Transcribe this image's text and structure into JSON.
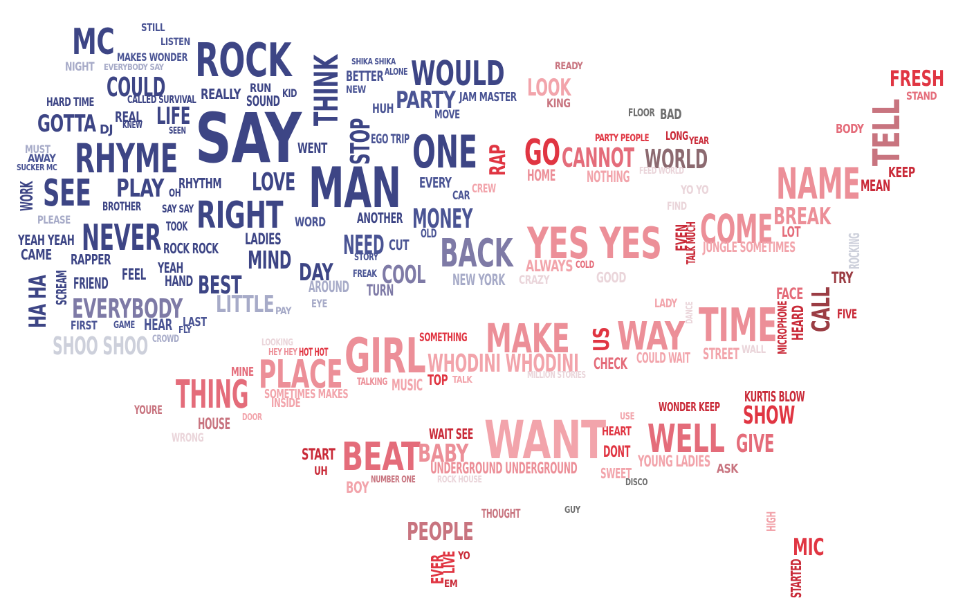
{
  "palette": {
    "navy": "#3d4585",
    "blue": "#4a5494",
    "slate": "#7e7aa6",
    "lavender": "#a7abc8",
    "silver": "#cdd0db",
    "pale": "#ead5da",
    "rose": "#f2a4ab",
    "pink": "#ec8f98",
    "coral": "#e46c7a",
    "mauve": "#c8747f",
    "red": "#e03542",
    "crimson": "#c92a38",
    "maroon": "#9b3d44",
    "taupe": "#8c6a70",
    "grey": "#6f6f6f"
  },
  "words": [
    {
      "id": "mc",
      "text": "MC",
      "color": "navy"
    },
    {
      "id": "still",
      "text": "STILL",
      "color": "blue"
    },
    {
      "id": "listen",
      "text": "LISTEN",
      "color": "blue"
    },
    {
      "id": "makes-wonder",
      "text": "MAKES WONDER",
      "color": "blue"
    },
    {
      "id": "night",
      "text": "NIGHT",
      "color": "lavender"
    },
    {
      "id": "everybody-say",
      "text": "EVERYBODY SAY",
      "color": "lavender"
    },
    {
      "id": "rock",
      "text": "ROCK",
      "color": "navy"
    },
    {
      "id": "think",
      "text": "THINK",
      "color": "navy"
    },
    {
      "id": "shika-shika",
      "text": "SHIKA SHIKA",
      "color": "blue"
    },
    {
      "id": "better",
      "text": "BETTER",
      "color": "blue"
    },
    {
      "id": "alone",
      "text": "ALONE",
      "color": "blue"
    },
    {
      "id": "new",
      "text": "NEW",
      "color": "blue"
    },
    {
      "id": "would",
      "text": "WOULD",
      "color": "navy"
    },
    {
      "id": "ready",
      "text": "READY",
      "color": "mauve"
    },
    {
      "id": "fresh",
      "text": "FRESH",
      "color": "red"
    },
    {
      "id": "stand",
      "text": "STAND",
      "color": "coral"
    },
    {
      "id": "could",
      "text": "COULD",
      "color": "navy"
    },
    {
      "id": "really",
      "text": "REALLY",
      "color": "navy"
    },
    {
      "id": "run",
      "text": "RUN",
      "color": "navy"
    },
    {
      "id": "sound",
      "text": "SOUND",
      "color": "navy"
    },
    {
      "id": "kid",
      "text": "KID",
      "color": "navy"
    },
    {
      "id": "hard-time",
      "text": "HARD TIME",
      "color": "navy"
    },
    {
      "id": "called-survival",
      "text": "CALLED SURVIVAL",
      "color": "navy"
    },
    {
      "id": "party",
      "text": "PARTY",
      "color": "blue"
    },
    {
      "id": "jam-master",
      "text": "JAM MASTER",
      "color": "blue"
    },
    {
      "id": "look",
      "text": "LOOK",
      "color": "rose"
    },
    {
      "id": "king",
      "text": "KING",
      "color": "mauve"
    },
    {
      "id": "tell",
      "text": "TELL",
      "color": "mauve"
    },
    {
      "id": "huh",
      "text": "HUH",
      "color": "blue"
    },
    {
      "id": "move",
      "text": "MOVE",
      "color": "blue"
    },
    {
      "id": "floor",
      "text": "FLOOR",
      "color": "grey"
    },
    {
      "id": "bad",
      "text": "BAD",
      "color": "grey"
    },
    {
      "id": "gotta",
      "text": "GOTTA",
      "color": "navy"
    },
    {
      "id": "dj",
      "text": "DJ",
      "color": "navy"
    },
    {
      "id": "real",
      "text": "REAL",
      "color": "navy"
    },
    {
      "id": "knew",
      "text": "KNEW",
      "color": "navy"
    },
    {
      "id": "life",
      "text": "LIFE",
      "color": "navy"
    },
    {
      "id": "seen",
      "text": "SEEN",
      "color": "navy"
    },
    {
      "id": "say",
      "text": "SAY",
      "color": "navy"
    },
    {
      "id": "stop",
      "text": "STOP",
      "color": "navy"
    },
    {
      "id": "ego-trip",
      "text": "EGO TRIP",
      "color": "blue"
    },
    {
      "id": "body",
      "text": "BODY",
      "color": "coral"
    },
    {
      "id": "must",
      "text": "MUST",
      "color": "lavender"
    },
    {
      "id": "away",
      "text": "AWAY",
      "color": "blue"
    },
    {
      "id": "sucker-mc",
      "text": "SUCKER MC",
      "color": "blue"
    },
    {
      "id": "rhyme",
      "text": "RHYME",
      "color": "navy"
    },
    {
      "id": "went",
      "text": "WENT",
      "color": "navy"
    },
    {
      "id": "one",
      "text": "ONE",
      "color": "navy"
    },
    {
      "id": "rap",
      "text": "RAP",
      "color": "red"
    },
    {
      "id": "go",
      "text": "GO",
      "color": "red"
    },
    {
      "id": "cannot",
      "text": "CANNOT",
      "color": "coral"
    },
    {
      "id": "party-people",
      "text": "PARTY PEOPLE",
      "color": "red"
    },
    {
      "id": "long",
      "text": "LONG",
      "color": "crimson"
    },
    {
      "id": "year",
      "text": "YEAR",
      "color": "crimson"
    },
    {
      "id": "world",
      "text": "WORLD",
      "color": "taupe"
    },
    {
      "id": "keep",
      "text": "KEEP",
      "color": "crimson"
    },
    {
      "id": "home",
      "text": "HOME",
      "color": "pink"
    },
    {
      "id": "nothing",
      "text": "NOTHING",
      "color": "rose"
    },
    {
      "id": "feed-world",
      "text": "FEED WORLD",
      "color": "pale"
    },
    {
      "id": "name",
      "text": "NAME",
      "color": "pink"
    },
    {
      "id": "mean",
      "text": "MEAN",
      "color": "crimson"
    },
    {
      "id": "work",
      "text": "WORK",
      "color": "navy"
    },
    {
      "id": "see",
      "text": "SEE",
      "color": "navy"
    },
    {
      "id": "play",
      "text": "PLAY",
      "color": "navy"
    },
    {
      "id": "oh",
      "text": "OH",
      "color": "navy"
    },
    {
      "id": "rhythm",
      "text": "RHYTHM",
      "color": "navy"
    },
    {
      "id": "love",
      "text": "LOVE",
      "color": "navy"
    },
    {
      "id": "man",
      "text": "MAN",
      "color": "navy"
    },
    {
      "id": "every",
      "text": "EVERY",
      "color": "blue"
    },
    {
      "id": "car",
      "text": "CAR",
      "color": "blue"
    },
    {
      "id": "crew",
      "text": "CREW",
      "color": "rose"
    },
    {
      "id": "yo-yo",
      "text": "YO YO",
      "color": "pale"
    },
    {
      "id": "brother",
      "text": "BROTHER",
      "color": "navy"
    },
    {
      "id": "say-say",
      "text": "SAY SAY",
      "color": "navy"
    },
    {
      "id": "right",
      "text": "RIGHT",
      "color": "navy"
    },
    {
      "id": "find",
      "text": "FIND",
      "color": "pale"
    },
    {
      "id": "break",
      "text": "BREAK",
      "color": "pink"
    },
    {
      "id": "please",
      "text": "PLEASE",
      "color": "lavender"
    },
    {
      "id": "took",
      "text": "TOOK",
      "color": "navy"
    },
    {
      "id": "word",
      "text": "WORD",
      "color": "blue"
    },
    {
      "id": "another",
      "text": "ANOTHER",
      "color": "navy"
    },
    {
      "id": "money",
      "text": "MONEY",
      "color": "blue"
    },
    {
      "id": "come",
      "text": "COME",
      "color": "pink"
    },
    {
      "id": "lot",
      "text": "LOT",
      "color": "coral"
    },
    {
      "id": "yeah-yeah",
      "text": "YEAH YEAH",
      "color": "navy"
    },
    {
      "id": "never",
      "text": "NEVER",
      "color": "navy"
    },
    {
      "id": "ladies",
      "text": "LADIES",
      "color": "navy"
    },
    {
      "id": "need",
      "text": "NEED",
      "color": "blue"
    },
    {
      "id": "cut",
      "text": "CUT",
      "color": "blue"
    },
    {
      "id": "old",
      "text": "OLD",
      "color": "blue"
    },
    {
      "id": "yes-yes",
      "text": "YES YES",
      "color": "pink"
    },
    {
      "id": "even",
      "text": "EVEN",
      "color": "crimson"
    },
    {
      "id": "talk-much",
      "text": "TALK MUCH",
      "color": "crimson"
    },
    {
      "id": "jungle-sometimes",
      "text": "JUNGLE SOMETIMES",
      "color": "rose"
    },
    {
      "id": "rocking",
      "text": "ROCKING",
      "color": "silver"
    },
    {
      "id": "came",
      "text": "CAME",
      "color": "navy"
    },
    {
      "id": "rock-rock",
      "text": "ROCK ROCK",
      "color": "navy"
    },
    {
      "id": "rapper",
      "text": "RAPPER",
      "color": "navy"
    },
    {
      "id": "mind",
      "text": "MIND",
      "color": "navy"
    },
    {
      "id": "story",
      "text": "STORY",
      "color": "blue"
    },
    {
      "id": "back",
      "text": "BACK",
      "color": "slate"
    },
    {
      "id": "always",
      "text": "ALWAYS",
      "color": "rose"
    },
    {
      "id": "cold",
      "text": "COLD",
      "color": "coral"
    },
    {
      "id": "try",
      "text": "TRY",
      "color": "maroon"
    },
    {
      "id": "haha",
      "text": "HA HA",
      "color": "navy"
    },
    {
      "id": "scream",
      "text": "SCREAM",
      "color": "navy"
    },
    {
      "id": "friend",
      "text": "FRIEND",
      "color": "navy"
    },
    {
      "id": "feel",
      "text": "FEEL",
      "color": "navy"
    },
    {
      "id": "yeah",
      "text": "YEAH",
      "color": "navy"
    },
    {
      "id": "hand",
      "text": "HAND",
      "color": "navy"
    },
    {
      "id": "best",
      "text": "BEST",
      "color": "navy"
    },
    {
      "id": "day",
      "text": "DAY",
      "color": "navy"
    },
    {
      "id": "freak",
      "text": "FREAK",
      "color": "blue"
    },
    {
      "id": "cool",
      "text": "COOL",
      "color": "slate"
    },
    {
      "id": "around",
      "text": "AROUND",
      "color": "lavender"
    },
    {
      "id": "new-york",
      "text": "NEW YORK",
      "color": "lavender"
    },
    {
      "id": "crazy",
      "text": "CRAZY",
      "color": "pale"
    },
    {
      "id": "good",
      "text": "GOOD",
      "color": "pale"
    },
    {
      "id": "face",
      "text": "FACE",
      "color": "coral"
    },
    {
      "id": "call",
      "text": "CALL",
      "color": "maroon"
    },
    {
      "id": "turn",
      "text": "TURN",
      "color": "slate"
    },
    {
      "id": "little",
      "text": "LITTLE",
      "color": "lavender"
    },
    {
      "id": "pay",
      "text": "PAY",
      "color": "lavender"
    },
    {
      "id": "eye",
      "text": "EYE",
      "color": "lavender"
    },
    {
      "id": "lady",
      "text": "LADY",
      "color": "rose"
    },
    {
      "id": "dance",
      "text": "DANCE",
      "color": "pale"
    },
    {
      "id": "microphone",
      "text": "MICROPHONE",
      "color": "crimson"
    },
    {
      "id": "heard",
      "text": "HEARD",
      "color": "crimson"
    },
    {
      "id": "five",
      "text": "FIVE",
      "color": "crimson"
    },
    {
      "id": "everybody",
      "text": "EVERYBODY",
      "color": "slate"
    },
    {
      "id": "first",
      "text": "FIRST",
      "color": "blue"
    },
    {
      "id": "game",
      "text": "GAME",
      "color": "blue"
    },
    {
      "id": "hear",
      "text": "HEAR",
      "color": "blue"
    },
    {
      "id": "last",
      "text": "LAST",
      "color": "blue"
    },
    {
      "id": "fly",
      "text": "FLY",
      "color": "blue"
    },
    {
      "id": "crowd",
      "text": "CROWD",
      "color": "lavender"
    },
    {
      "id": "make",
      "text": "MAKE",
      "color": "pink"
    },
    {
      "id": "time",
      "text": "TIME",
      "color": "pink"
    },
    {
      "id": "us",
      "text": "US",
      "color": "red"
    },
    {
      "id": "way",
      "text": "WAY",
      "color": "pink"
    },
    {
      "id": "shoo-shoo",
      "text": "SHOO SHOO",
      "color": "silver"
    },
    {
      "id": "looking",
      "text": "LOOKING",
      "color": "pale"
    },
    {
      "id": "hey-hey",
      "text": "HEY HEY",
      "color": "pink"
    },
    {
      "id": "hot-hot",
      "text": "HOT HOT",
      "color": "red"
    },
    {
      "id": "something",
      "text": "SOMETHING",
      "color": "red"
    },
    {
      "id": "girl",
      "text": "GIRL",
      "color": "pink"
    },
    {
      "id": "whodini-whodini",
      "text": "WHODINI WHODINI",
      "color": "rose"
    },
    {
      "id": "check",
      "text": "CHECK",
      "color": "coral"
    },
    {
      "id": "could-wait",
      "text": "COULD WAIT",
      "color": "rose"
    },
    {
      "id": "street",
      "text": "STREET",
      "color": "rose"
    },
    {
      "id": "wall",
      "text": "WALL",
      "color": "pale"
    },
    {
      "id": "mine",
      "text": "MINE",
      "color": "coral"
    },
    {
      "id": "place",
      "text": "PLACE",
      "color": "pink"
    },
    {
      "id": "talking",
      "text": "TALKING",
      "color": "pink"
    },
    {
      "id": "music",
      "text": "MUSIC",
      "color": "rose"
    },
    {
      "id": "top",
      "text": "TOP",
      "color": "red"
    },
    {
      "id": "talk",
      "text": "TALK",
      "color": "rose"
    },
    {
      "id": "million-stories",
      "text": "MILLION STORIES",
      "color": "pale"
    },
    {
      "id": "thing",
      "text": "THING",
      "color": "coral"
    },
    {
      "id": "sometimes-makes",
      "text": "SOMETIMES MAKES",
      "color": "rose"
    },
    {
      "id": "inside",
      "text": "INSIDE",
      "color": "rose"
    },
    {
      "id": "youre",
      "text": "YOURE",
      "color": "mauve"
    },
    {
      "id": "house",
      "text": "HOUSE",
      "color": "mauve"
    },
    {
      "id": "door",
      "text": "DOOR",
      "color": "rose"
    },
    {
      "id": "wrong",
      "text": "WRONG",
      "color": "pale"
    },
    {
      "id": "kurtis-blow",
      "text": "KURTIS BLOW",
      "color": "crimson"
    },
    {
      "id": "wonder-keep",
      "text": "WONDER KEEP",
      "color": "crimson"
    },
    {
      "id": "show",
      "text": "SHOW",
      "color": "red"
    },
    {
      "id": "use",
      "text": "USE",
      "color": "rose"
    },
    {
      "id": "heart",
      "text": "HEART",
      "color": "red"
    },
    {
      "id": "want",
      "text": "WANT",
      "color": "rose"
    },
    {
      "id": "well",
      "text": "WELL",
      "color": "coral"
    },
    {
      "id": "give",
      "text": "GIVE",
      "color": "coral"
    },
    {
      "id": "wait-see",
      "text": "WAIT SEE",
      "color": "crimson"
    },
    {
      "id": "start",
      "text": "START",
      "color": "crimson"
    },
    {
      "id": "beat",
      "text": "BEAT",
      "color": "coral"
    },
    {
      "id": "baby",
      "text": "BABY",
      "color": "pink"
    },
    {
      "id": "dont",
      "text": "DONT",
      "color": "red"
    },
    {
      "id": "young-ladies",
      "text": "YOUNG LADIES",
      "color": "rose"
    },
    {
      "id": "uh",
      "text": "UH",
      "color": "crimson"
    },
    {
      "id": "underground-underground",
      "text": "UNDERGROUND UNDERGROUND",
      "color": "pink"
    },
    {
      "id": "sweet",
      "text": "SWEET",
      "color": "rose"
    },
    {
      "id": "ask",
      "text": "ASK",
      "color": "mauve"
    },
    {
      "id": "number-one",
      "text": "NUMBER ONE",
      "color": "mauve"
    },
    {
      "id": "rock-house",
      "text": "ROCK HOUSE",
      "color": "pale"
    },
    {
      "id": "disco",
      "text": "DISCO",
      "color": "grey"
    },
    {
      "id": "boy",
      "text": "BOY",
      "color": "rose"
    },
    {
      "id": "thought",
      "text": "THOUGHT",
      "color": "mauve"
    },
    {
      "id": "guy",
      "text": "GUY",
      "color": "grey"
    },
    {
      "id": "high",
      "text": "HIGH",
      "color": "rose"
    },
    {
      "id": "people",
      "text": "PEOPLE",
      "color": "mauve"
    },
    {
      "id": "mic",
      "text": "MIC",
      "color": "red"
    },
    {
      "id": "ever",
      "text": "EVER",
      "color": "red"
    },
    {
      "id": "live",
      "text": "LIVE",
      "color": "red"
    },
    {
      "id": "yo",
      "text": "YO",
      "color": "crimson"
    },
    {
      "id": "em",
      "text": "EM",
      "color": "crimson"
    },
    {
      "id": "started",
      "text": "STARTED",
      "color": "crimson"
    }
  ]
}
